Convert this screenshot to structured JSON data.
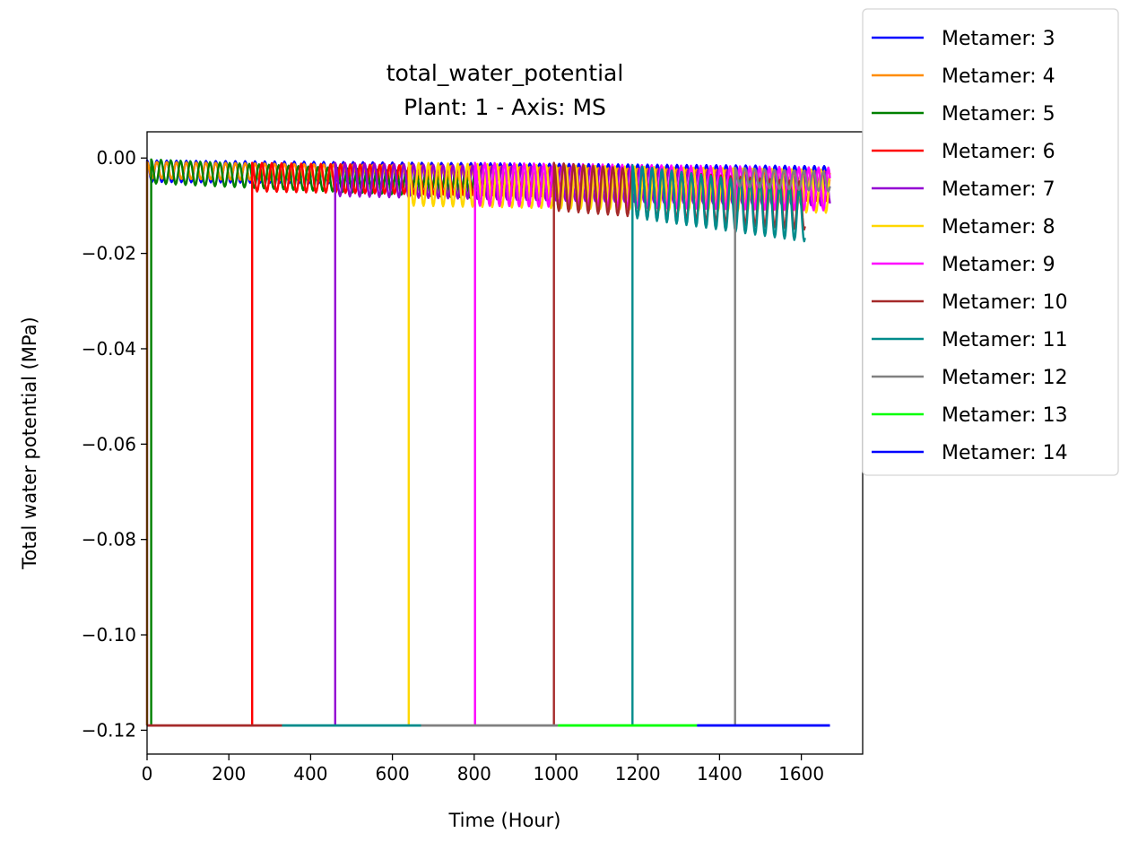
{
  "chart_data": {
    "type": "line",
    "title": "total_water_potential",
    "subtitle": "Plant: 1 - Axis: MS",
    "xlabel": "Time (Hour)",
    "ylabel": "Total water potential (MPa)",
    "xlim": [
      0,
      1750
    ],
    "ylim": [
      -0.125,
      0.0055
    ],
    "xticks": [
      0,
      200,
      400,
      600,
      800,
      1000,
      1200,
      1400,
      1600
    ],
    "yticks": [
      0.0,
      -0.02,
      -0.04,
      -0.06,
      -0.08,
      -0.1,
      -0.12
    ],
    "ytick_labels": [
      "0.00",
      "−0.02",
      "−0.04",
      "−0.06",
      "−0.08",
      "−0.10",
      "−0.12"
    ],
    "grid": false,
    "legend_position": "upper-right outside",
    "baseline_value": -0.119,
    "series": [
      {
        "name": "Metamer: 3",
        "color": "#0000ff",
        "start": 0,
        "end": 1670,
        "baseline_until": 0,
        "level": -0.0005,
        "amplitude": 0.0045,
        "period": 24,
        "trend": -0.0012
      },
      {
        "name": "Metamer: 4",
        "color": "#ff8c00",
        "start": 0,
        "end": 1670,
        "baseline_until": 0,
        "level": -0.0008,
        "amplitude": 0.0035,
        "period": 24,
        "trend": -0.002
      },
      {
        "name": "Metamer: 5",
        "color": "#008000",
        "start": 10,
        "end": 1040,
        "baseline_until": 10,
        "level": -0.0003,
        "amplitude": 0.005,
        "period": 24,
        "trend": -0.004
      },
      {
        "name": "Metamer: 6",
        "color": "#ff0000",
        "start": 257,
        "end": 1670,
        "baseline_until": 257,
        "level": -0.001,
        "amplitude": 0.006,
        "period": 24,
        "trend": -0.002
      },
      {
        "name": "Metamer: 7",
        "color": "#9400d3",
        "start": 460,
        "end": 1670,
        "baseline_until": 460,
        "level": -0.001,
        "amplitude": 0.007,
        "period": 24,
        "trend": -0.002
      },
      {
        "name": "Metamer: 8",
        "color": "#ffd700",
        "start": 640,
        "end": 1670,
        "baseline_until": 640,
        "level": -0.001,
        "amplitude": 0.009,
        "period": 24,
        "trend": -0.0015
      },
      {
        "name": "Metamer: 9",
        "color": "#ff00ff",
        "start": 802,
        "end": 1670,
        "baseline_until": 802,
        "level": -0.001,
        "amplitude": 0.009,
        "period": 24,
        "trend": -0.001
      },
      {
        "name": "Metamer: 10",
        "color": "#a52a2a",
        "start": 995,
        "end": 1610,
        "baseline_until": 995,
        "level": -0.001,
        "amplitude": 0.01,
        "period": 24,
        "trend": -0.004
      },
      {
        "name": "Metamer: 11",
        "color": "#008b8b",
        "start": 1187,
        "end": 1610,
        "baseline_until": 1187,
        "level": -0.0015,
        "amplitude": 0.011,
        "period": 24,
        "trend": -0.005
      },
      {
        "name": "Metamer: 12",
        "color": "#808080",
        "start": 1438,
        "end": 1670,
        "baseline_until": 1438,
        "level": -0.002,
        "amplitude": 0.004,
        "period": 24,
        "trend": -0.001
      },
      {
        "name": "Metamer: 13",
        "color": "#00ff00",
        "start": 1005,
        "end": 1345,
        "baseline_until": 1345,
        "level": -0.119,
        "amplitude": 0,
        "period": 24,
        "trend": 0
      },
      {
        "name": "Metamer: 14",
        "color": "#0000ff",
        "start": 1345,
        "end": 1670,
        "baseline_until": 1670,
        "level": -0.119,
        "amplitude": 0,
        "period": 24,
        "trend": 0
      }
    ],
    "baseline_segments": [
      {
        "color": "#a52a2a",
        "x": [
          0,
          330
        ]
      },
      {
        "color": "#008b8b",
        "x": [
          330,
          670
        ]
      },
      {
        "color": "#808080",
        "x": [
          670,
          1005
        ]
      },
      {
        "color": "#00ff00",
        "x": [
          1005,
          1345
        ]
      },
      {
        "color": "#0000ff",
        "x": [
          1345,
          1670
        ]
      }
    ]
  }
}
